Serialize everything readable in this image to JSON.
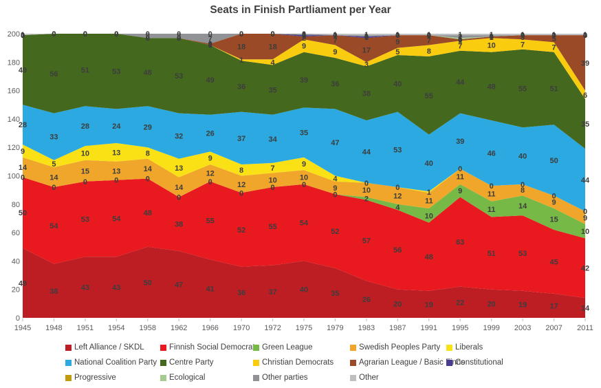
{
  "title": "Seats in Finish Partliament per Year",
  "chart_data": {
    "type": "area",
    "stacked": true,
    "title": "Seats in Finish Partliament per Year",
    "xlabel": "",
    "ylabel": "",
    "ylim": [
      0,
      200
    ],
    "yticks": [
      0,
      20,
      40,
      60,
      80,
      100,
      120,
      140,
      160,
      180,
      200
    ],
    "grid": false,
    "legend_position": "bottom",
    "x": [
      1945,
      1948,
      1951,
      1954,
      1958,
      1962,
      1966,
      1970,
      1972,
      1975,
      1979,
      1983,
      1987,
      1991,
      1995,
      1999,
      2003,
      2007,
      2011
    ],
    "series": [
      {
        "id": "left-alliance-skdl",
        "name": "Left Alliance / SKDL",
        "color": "#BC1E24",
        "values": [
          49,
          38,
          43,
          43,
          50,
          47,
          41,
          36,
          37,
          40,
          35,
          26,
          20,
          19,
          22,
          20,
          19,
          17,
          14
        ]
      },
      {
        "id": "finnish-social-democrats",
        "name": "Finnish Social Democrats",
        "color": "#E8191F",
        "values": [
          50,
          54,
          53,
          54,
          48,
          38,
          55,
          52,
          55,
          54,
          52,
          57,
          56,
          48,
          63,
          51,
          53,
          45,
          42
        ]
      },
      {
        "id": "green-league",
        "name": "Green League",
        "color": "#76B947",
        "values": [
          0,
          0,
          0,
          0,
          0,
          0,
          0,
          0,
          0,
          0,
          0,
          2,
          4,
          10,
          9,
          11,
          14,
          15,
          10
        ]
      },
      {
        "id": "swedish-peoples-party",
        "name": "Swedish Peoples Party",
        "color": "#EFA62B",
        "values": [
          14,
          14,
          15,
          13,
          14,
          14,
          12,
          12,
          10,
          10,
          9,
          10,
          12,
          11,
          11,
          11,
          8,
          9,
          9
        ]
      },
      {
        "id": "liberals",
        "name": "Liberals",
        "color": "#FAE115",
        "values": [
          9,
          5,
          10,
          13,
          8,
          13,
          9,
          8,
          7,
          9,
          4,
          0,
          0,
          1,
          0,
          0,
          0,
          0,
          0
        ]
      },
      {
        "id": "national-coalition-party",
        "name": "National Coalition Party",
        "color": "#2BA9E0",
        "values": [
          28,
          33,
          28,
          24,
          29,
          32,
          26,
          37,
          34,
          35,
          47,
          44,
          53,
          40,
          39,
          46,
          40,
          50,
          44
        ]
      },
      {
        "id": "centre-party",
        "name": "Centre Party",
        "color": "#44691E",
        "values": [
          49,
          56,
          51,
          53,
          48,
          53,
          49,
          36,
          35,
          39,
          36,
          38,
          40,
          55,
          44,
          48,
          55,
          51,
          35
        ]
      },
      {
        "id": "christian-democrats",
        "name": "Christian Democrats",
        "color": "#FACC0F",
        "values": [
          0,
          0,
          0,
          0,
          0,
          0,
          0,
          1,
          4,
          9,
          9,
          3,
          5,
          8,
          7,
          10,
          7,
          7,
          6
        ]
      },
      {
        "id": "agrarian-league-basic-finns",
        "name": "Agrarian  League / Basic Finns",
        "color": "#9A4A27",
        "values": [
          0,
          0,
          0,
          0,
          0,
          0,
          1,
          18,
          18,
          2,
          7,
          17,
          9,
          7,
          1,
          1,
          3,
          5,
          39
        ]
      },
      {
        "id": "constitutional",
        "name": "Constitutional",
        "color": "#463B91",
        "values": [
          0,
          0,
          0,
          0,
          0,
          0,
          0,
          0,
          0,
          1,
          0,
          1,
          0,
          0,
          0,
          0,
          0,
          0,
          0
        ]
      },
      {
        "id": "progressive",
        "name": "Progressive",
        "color": "#C29B0D",
        "values": [
          0,
          0,
          0,
          0,
          0,
          0,
          0,
          0,
          0,
          0,
          0,
          0,
          0,
          0,
          0,
          0,
          0,
          0,
          0
        ]
      },
      {
        "id": "ecological",
        "name": "Ecological",
        "color": "#A6CB8E",
        "values": [
          0,
          0,
          0,
          0,
          0,
          0,
          0,
          0,
          0,
          0,
          0,
          0,
          0,
          0,
          1,
          0,
          0,
          0,
          0
        ]
      },
      {
        "id": "other-parties",
        "name": "Other parties",
        "color": "#909295",
        "values": [
          0,
          0,
          0,
          0,
          3,
          3,
          7,
          0,
          0,
          1,
          0,
          1,
          0,
          0,
          2,
          1,
          0,
          0,
          0
        ]
      },
      {
        "id": "other",
        "name": "Other",
        "color": "#BEBFC1",
        "values": [
          1,
          0,
          0,
          0,
          0,
          0,
          0,
          0,
          0,
          0,
          1,
          1,
          1,
          1,
          1,
          1,
          1,
          1,
          1
        ]
      }
    ]
  },
  "legend": {
    "items": [
      {
        "series": 0,
        "label": "Left Alliance / SKDL",
        "col": 0,
        "row": 0
      },
      {
        "series": 1,
        "label": "Finnish Social Democrats",
        "col": 1,
        "row": 0
      },
      {
        "series": 2,
        "label": "Green League",
        "col": 2,
        "row": 0
      },
      {
        "series": 3,
        "label": "Swedish Peoples Party",
        "col": 3,
        "row": 0
      },
      {
        "series": 4,
        "label": "Liberals",
        "col": 4,
        "row": 0
      },
      {
        "series": 5,
        "name": "",
        "label": "National Coalition Party",
        "col": 0,
        "row": 1
      },
      {
        "series": 6,
        "label": "Centre Party",
        "col": 1,
        "row": 1
      },
      {
        "series": 7,
        "label": "Christian Democrats",
        "col": 2,
        "row": 1
      },
      {
        "series": 8,
        "label": "Agrarian  League / Basic Finns",
        "col": 3,
        "row": 1
      },
      {
        "series": 9,
        "label": "Constitutional",
        "col": 4,
        "row": 1
      },
      {
        "series": 10,
        "label": "Progressive",
        "col": 0,
        "row": 2
      },
      {
        "series": 11,
        "label": "Ecological",
        "col": 1,
        "row": 2
      },
      {
        "series": 12,
        "label": "Other parties",
        "col": 2,
        "row": 2
      },
      {
        "series": 13,
        "label": "Other",
        "col": 3,
        "row": 2
      }
    ]
  }
}
